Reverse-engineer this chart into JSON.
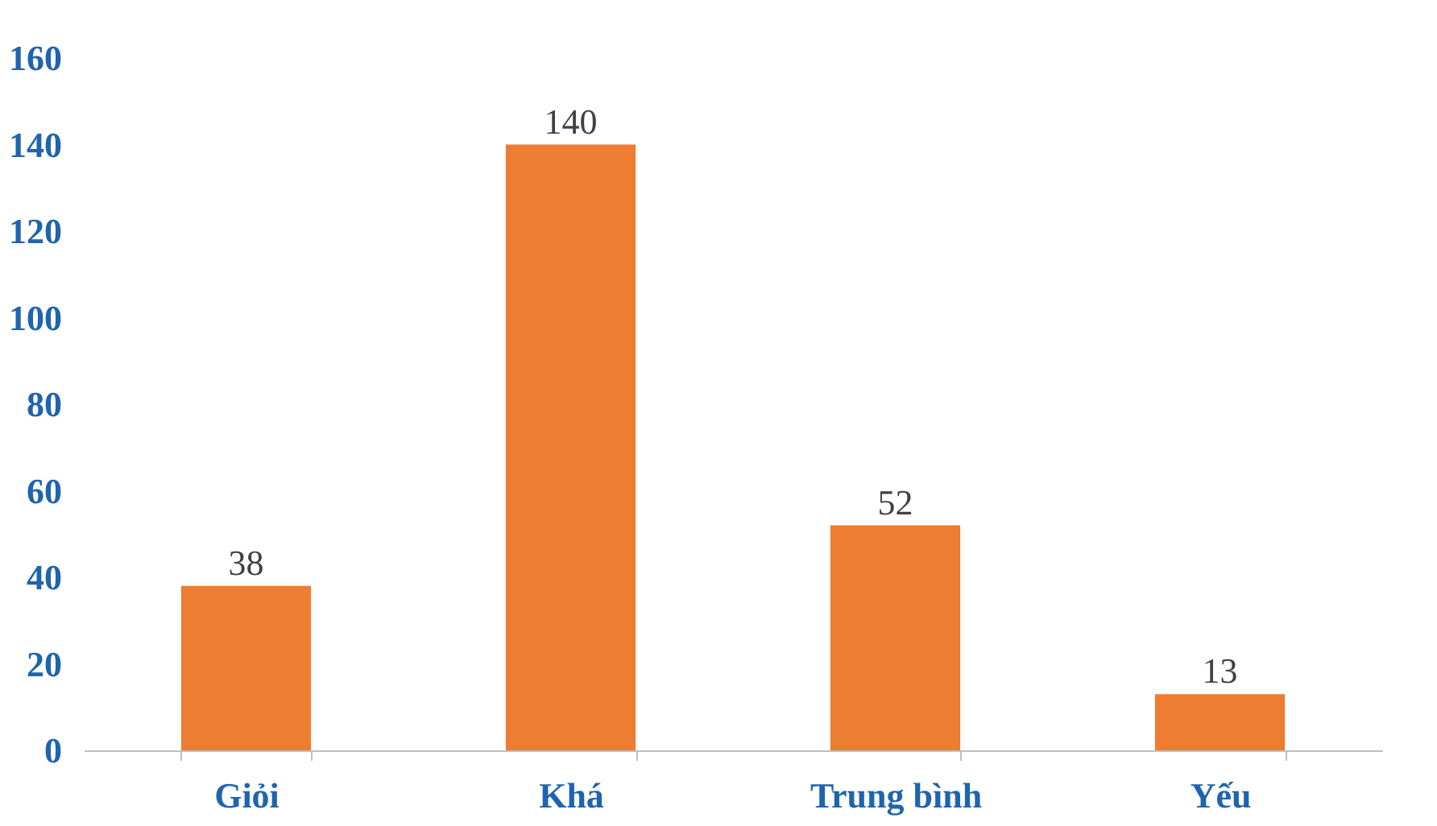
{
  "chart_data": {
    "type": "bar",
    "categories": [
      "Giỏi",
      "Khá",
      "Trung bình",
      "Yếu"
    ],
    "values": [
      38,
      140,
      52,
      13
    ],
    "color": "#ed7d31",
    "ylim": [
      0,
      160
    ],
    "yticks": [
      0,
      20,
      40,
      60,
      80,
      100,
      120,
      140,
      160
    ],
    "grid": false,
    "data_labels": true
  }
}
